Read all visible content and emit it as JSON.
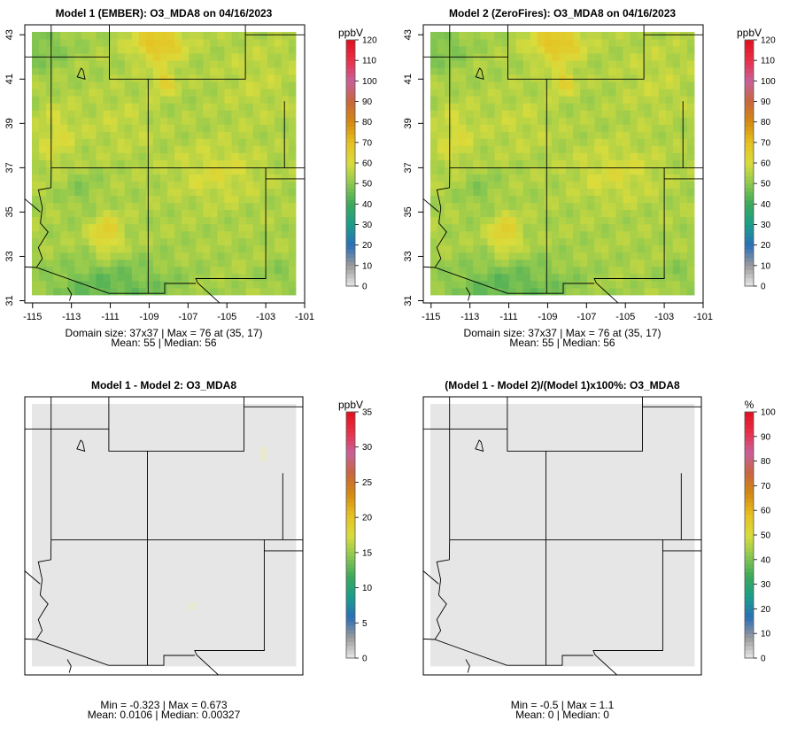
{
  "colors": {
    "frame": "#000000",
    "boundary": "#000000",
    "background": "#ffffff",
    "diff_fill": "#e6e6e6"
  },
  "color_scale": {
    "type": "sequential",
    "stops": [
      "#e8e8e8",
      "#9a9a9a",
      "#2a6fb8",
      "#1a9e8a",
      "#3ca85a",
      "#8cc850",
      "#d9dc3c",
      "#e6c020",
      "#d48a10",
      "#c9663c",
      "#c8609a",
      "#e83048",
      "#e0101e"
    ]
  },
  "chart_data": [
    {
      "type": "heatmap",
      "title": "Model 1 (EMBER): O3_MDA8 on 04/16/2023",
      "xlabel": "",
      "ylabel": "",
      "x_ticks": [
        "-115",
        "-113",
        "-111",
        "-109",
        "-107",
        "-105",
        "-103",
        "-101"
      ],
      "y_ticks": [
        "31",
        "33",
        "35",
        "37",
        "39",
        "41",
        "43"
      ],
      "xlim": [
        -115,
        -101
      ],
      "ylim": [
        31,
        43.2
      ],
      "colorbar": {
        "unit": "ppbV",
        "min": 0,
        "max": 120,
        "ticks": [
          "0",
          "10",
          "20",
          "30",
          "40",
          "50",
          "60",
          "70",
          "80",
          "90",
          "100",
          "110",
          "120"
        ]
      },
      "stats": [
        "Domain size: 37x37 | Max = 76 at (35, 17)",
        "Mean: 55 |  Median: 56"
      ],
      "domain_size": [
        37,
        37
      ],
      "max": {
        "value": 76,
        "at": [
          35,
          17
        ]
      },
      "mean": 55,
      "median": 56,
      "field": "ozone"
    },
    {
      "type": "heatmap",
      "title": "Model 2 (ZeroFires): O3_MDA8 on 04/16/2023",
      "xlabel": "",
      "ylabel": "",
      "x_ticks": [
        "-115",
        "-113",
        "-111",
        "-109",
        "-107",
        "-105",
        "-103",
        "-101"
      ],
      "y_ticks": [
        "31",
        "33",
        "35",
        "37",
        "39",
        "41",
        "43"
      ],
      "xlim": [
        -115,
        -101
      ],
      "ylim": [
        31,
        43.2
      ],
      "colorbar": {
        "unit": "ppbV",
        "min": 0,
        "max": 120,
        "ticks": [
          "0",
          "10",
          "20",
          "30",
          "40",
          "50",
          "60",
          "70",
          "80",
          "90",
          "100",
          "110",
          "120"
        ]
      },
      "stats": [
        "Domain size: 37x37 | Max = 76 at (35, 17)",
        "Mean: 55 |  Median: 56"
      ],
      "domain_size": [
        37,
        37
      ],
      "max": {
        "value": 76,
        "at": [
          35,
          17
        ]
      },
      "mean": 55,
      "median": 56,
      "field": "ozone"
    },
    {
      "type": "heatmap",
      "title": "Model 1 - Model 2: O3_MDA8",
      "xlabel": "",
      "ylabel": "",
      "x_ticks": [],
      "y_ticks": [],
      "colorbar": {
        "unit": "ppbV",
        "min": 0,
        "max": 35,
        "ticks": [
          "0",
          "5",
          "10",
          "15",
          "20",
          "25",
          "30",
          "35"
        ]
      },
      "stats": [
        "Min = -0.323 | Max = 0.673",
        "Mean: 0.0106 |  Median: 0.00327"
      ],
      "min": -0.323,
      "max": 0.673,
      "mean": 0.0106,
      "median": 0.00327,
      "field": "diff"
    },
    {
      "type": "heatmap",
      "title": "(Model 1 - Model 2)/(Model 1)x100%: O3_MDA8",
      "xlabel": "",
      "ylabel": "",
      "x_ticks": [],
      "y_ticks": [],
      "colorbar": {
        "unit": "%",
        "min": 0,
        "max": 100,
        "ticks": [
          "0",
          "10",
          "20",
          "30",
          "40",
          "50",
          "60",
          "70",
          "80",
          "90",
          "100"
        ]
      },
      "stats": [
        "Min = -0.5 | Max = 1.1",
        "Mean: 0 |  Median: 0"
      ],
      "min": -0.5,
      "max": 1.1,
      "mean": 0,
      "median": 0,
      "field": "pct"
    }
  ]
}
